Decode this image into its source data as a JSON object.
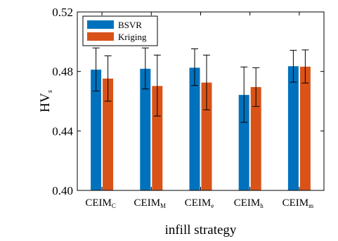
{
  "chart_data": {
    "type": "bar",
    "categories": [
      {
        "base": "CEIM",
        "sub": "C"
      },
      {
        "base": "CEIM",
        "sub": "M"
      },
      {
        "base": "CEIM",
        "sub": "e"
      },
      {
        "base": "CEIM",
        "sub": "h"
      },
      {
        "base": "CEIM",
        "sub": "m"
      }
    ],
    "series": [
      {
        "name": "BSVR",
        "color": "#0072BD",
        "values": [
          0.4812,
          0.4818,
          0.4825,
          0.4642,
          0.4835
        ],
        "error_low": [
          0.4668,
          0.4682,
          0.4705,
          0.4458,
          0.4728
        ],
        "error_high": [
          0.4958,
          0.4958,
          0.4952,
          0.483,
          0.4942
        ]
      },
      {
        "name": "Kriging",
        "color": "#D95319",
        "values": [
          0.4752,
          0.4702,
          0.4725,
          0.4695,
          0.4832
        ],
        "error_low": [
          0.46,
          0.45,
          0.4542,
          0.4565,
          0.4722
        ],
        "error_high": [
          0.4905,
          0.491,
          0.491,
          0.4825,
          0.4945
        ]
      }
    ],
    "xlabel": "infill strategy",
    "ylabel": {
      "base": "HV",
      "sub": "s"
    },
    "ylim": [
      0.4,
      0.52
    ],
    "yticks": [
      "0.40",
      "0.44",
      "0.48",
      "0.52"
    ],
    "legend_position": "top-left",
    "grid": false
  }
}
